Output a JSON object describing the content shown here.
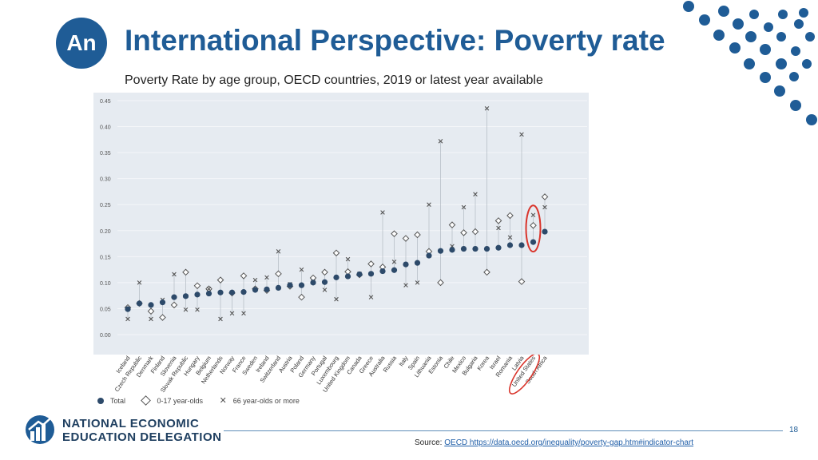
{
  "header": {
    "logo_text": "An",
    "title": "International Perspective: Poverty rate",
    "subtitle": "Poverty Rate by age group, OECD countries, 2019 or latest year available"
  },
  "colors": {
    "brand": "#1f5c96",
    "chart_bg": "#e6ebf1",
    "total_marker": "#2d4a6a",
    "highlight": "#d9342b"
  },
  "chart_data": {
    "type": "scatter",
    "title": "",
    "xlabel": "",
    "ylabel": "",
    "ylim": [
      0,
      0.45
    ],
    "yticks": [
      "0.00",
      "0.05",
      "0.10",
      "0.15",
      "0.20",
      "0.25",
      "0.30",
      "0.35",
      "0.40",
      "0.45"
    ],
    "categories": [
      "Iceland",
      "Czech Republic",
      "Denmark",
      "Finland",
      "Slovenia",
      "Slovak Republic",
      "Hungary",
      "Belgium",
      "Netherlands",
      "Norway",
      "France",
      "Sweden",
      "Ireland",
      "Switzerland",
      "Austria",
      "Poland",
      "Germany",
      "Portugal",
      "Luxembourg",
      "United Kingdom",
      "Canada",
      "Greece",
      "Australia",
      "Russia",
      "Italy",
      "Spain",
      "Lithuania",
      "Estonia",
      "Chile",
      "Mexico",
      "Bulgaria",
      "Korea",
      "Israel",
      "Romania",
      "Latvia",
      "United States",
      "South Africa"
    ],
    "series": [
      {
        "name": "Total",
        "marker": "dot",
        "values": [
          0.049,
          0.06,
          0.057,
          0.062,
          0.072,
          0.074,
          0.077,
          0.079,
          0.081,
          0.081,
          0.082,
          0.086,
          0.087,
          0.09,
          0.095,
          0.095,
          0.1,
          0.101,
          0.11,
          0.112,
          0.116,
          0.117,
          0.122,
          0.124,
          0.135,
          0.138,
          0.152,
          0.161,
          0.163,
          0.165,
          0.165,
          0.165,
          0.167,
          0.172,
          0.172,
          0.178,
          0.198
        ]
      },
      {
        "name": "0-17 year-olds",
        "marker": "diamond",
        "values": [
          0.052,
          0.06,
          0.045,
          0.033,
          0.057,
          0.12,
          0.094,
          0.088,
          0.105,
          0.08,
          0.113,
          0.088,
          0.085,
          0.117,
          0.093,
          0.072,
          0.109,
          0.12,
          0.157,
          0.121,
          0.115,
          0.136,
          0.13,
          0.194,
          0.185,
          0.192,
          0.16,
          0.1,
          0.211,
          0.196,
          0.198,
          0.12,
          0.219,
          0.229,
          0.102,
          0.21,
          0.265
        ]
      },
      {
        "name": "66 year-olds or more",
        "marker": "x",
        "values": [
          0.03,
          0.1,
          0.03,
          0.067,
          0.116,
          0.048,
          0.048,
          0.088,
          0.03,
          0.041,
          0.041,
          0.105,
          0.11,
          0.16,
          0.097,
          0.125,
          0.102,
          0.086,
          0.068,
          0.145,
          0.117,
          0.072,
          0.235,
          0.14,
          0.095,
          0.1,
          0.25,
          0.372,
          0.17,
          0.245,
          0.27,
          0.435,
          0.205,
          0.187,
          0.385,
          0.23,
          0.245
        ]
      }
    ],
    "highlighted": [
      "United States"
    ]
  },
  "legend": {
    "total": "Total",
    "children": "0-17 year-olds",
    "elderly": "66 year-olds or more"
  },
  "footer": {
    "org_line1": "NATIONAL ECONOMIC",
    "org_line2": "EDUCATION DELEGATION",
    "page_number": "18",
    "source_label": "Source:",
    "source_link_text": "OECD https://data.oecd.org/inequality/poverty-gap.htm#indicator-chart"
  }
}
